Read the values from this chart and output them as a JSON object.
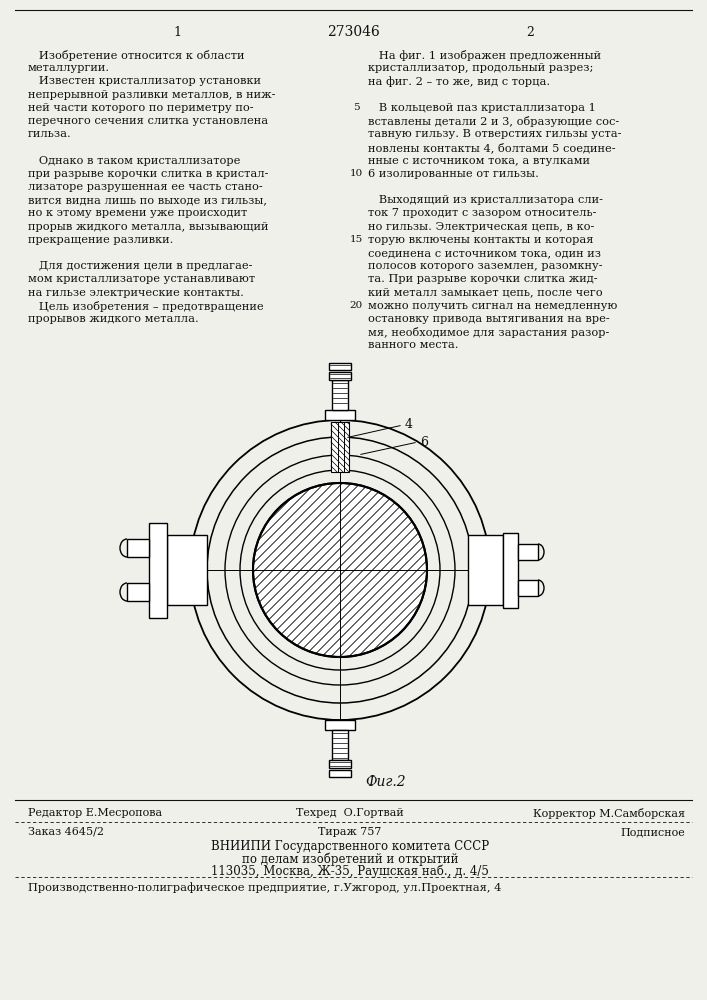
{
  "page_number_left": "1",
  "page_number_center": "273046",
  "page_number_right": "2",
  "bg_color": "#f0f0eb",
  "text_color": "#111111",
  "line_color": "#111111",
  "footer_line1_left": "Редактор Е.Месропова",
  "footer_line1_mid": "Техред  О.Гортвай",
  "footer_line1_right": "Корректор М.Самборская",
  "footer_line2_left": "Заказ 4645/2",
  "footer_line2_mid": "Тираж 757",
  "footer_line2_right": "Подписное",
  "footer_line3": "ВНИИПИ Государственного комитета СССР",
  "footer_line4": "по делам изобретений и открытий",
  "footer_line5": "113035, Москва, Ж-35, Раушская наб., д. 4/5",
  "footer_line6": "Производственно-полиграфическое предприятие, г.Ужгород, ул.Проектная, 4"
}
